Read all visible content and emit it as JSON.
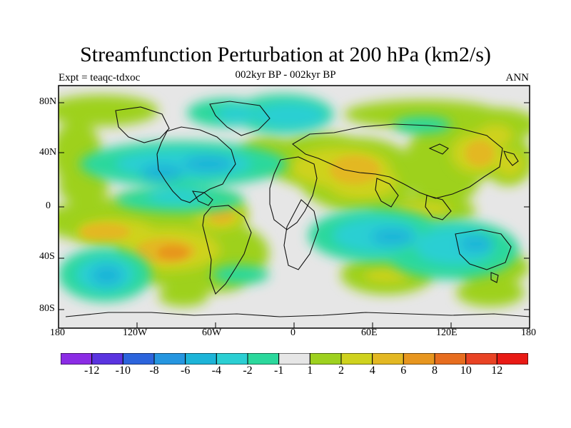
{
  "title": "Streamfunction Perturbation at 200 hPa (km2/s)",
  "left_label": "Expt = teaqc-tdxoc",
  "center_label": "002kyr BP - 002kyr BP",
  "right_label": "ANN",
  "y_ticks": [
    "80N",
    "40N",
    "0",
    "40S",
    "80S"
  ],
  "x_ticks": [
    "180",
    "120W",
    "60W",
    "0",
    "60E",
    "120E",
    "180"
  ],
  "colorbar": {
    "colors": [
      "#8b2ce5",
      "#5a34e0",
      "#2c64dc",
      "#2596e0",
      "#1db4d8",
      "#2bcfd3",
      "#2bd89c",
      "#e6e6e6",
      "#9ed11f",
      "#cfd21e",
      "#e3b823",
      "#e7961f",
      "#e76d1f",
      "#e94324",
      "#e91a15"
    ],
    "labels": [
      "-12",
      "-10",
      "-8",
      "-6",
      "-4",
      "-2",
      "-1",
      "1",
      "2",
      "4",
      "6",
      "8",
      "10",
      "12"
    ]
  },
  "chart_data": {
    "type": "heatmap",
    "title": "Streamfunction Perturbation at 200 hPa (km2/s)",
    "subtitle": "002kyr BP - 002kyr BP",
    "left_label": "Expt = teaqc-tdxoc",
    "right_label": "ANN",
    "xlabel": "",
    "ylabel": "",
    "x_ticks": [
      "180",
      "120W",
      "60W",
      "0",
      "60E",
      "120E",
      "180"
    ],
    "y_ticks": [
      "80N",
      "40N",
      "0",
      "40S",
      "80S"
    ],
    "xlim": [
      -180,
      180
    ],
    "ylim": [
      -90,
      90
    ],
    "legend": "bottom",
    "color_levels": [
      -12,
      -10,
      -8,
      -6,
      -4,
      -2,
      -1,
      1,
      2,
      4,
      6,
      8,
      10,
      12
    ]
  }
}
